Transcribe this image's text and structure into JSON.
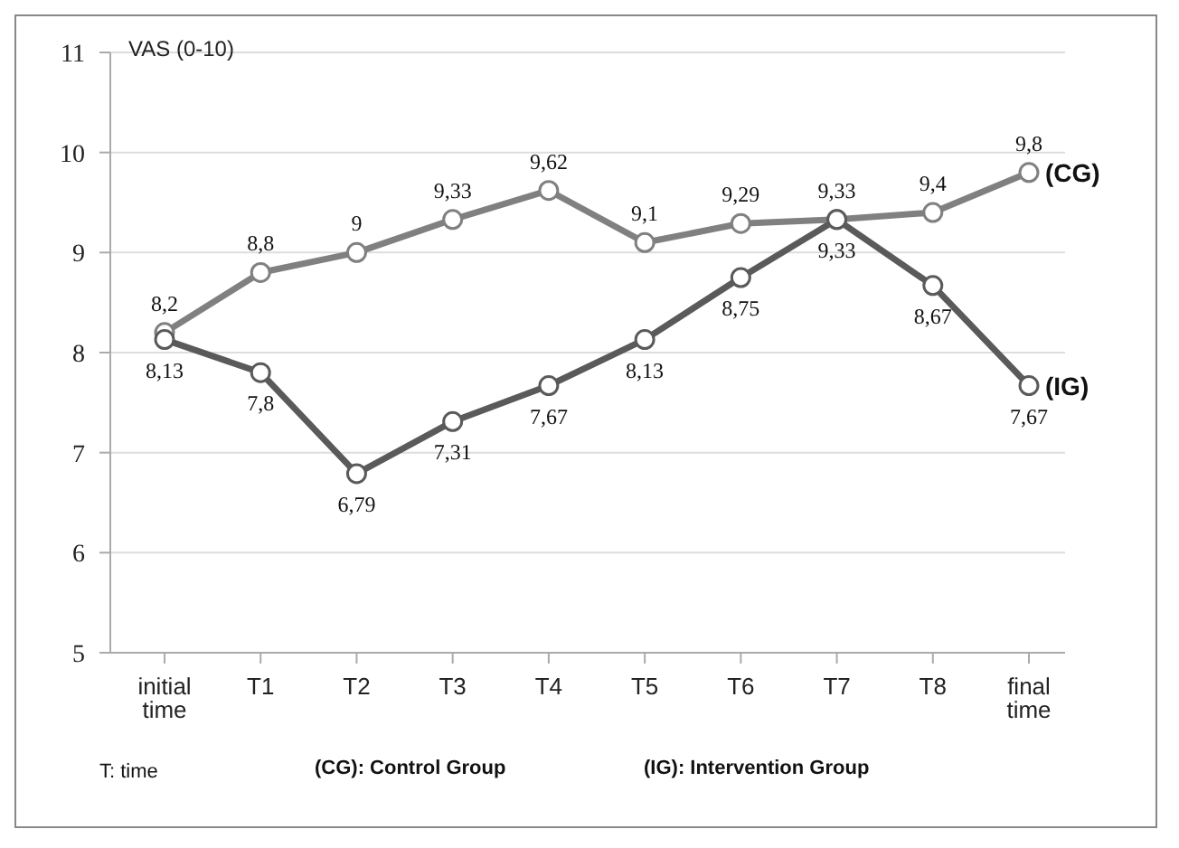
{
  "chart_data": {
    "type": "line",
    "ylabel": "VAS (0-10)",
    "categories": [
      "initial time",
      "T1",
      "T2",
      "T3",
      "T4",
      "T5",
      "T6",
      "T7",
      "T8",
      "final time"
    ],
    "series": [
      {
        "name": "(CG)",
        "color": "#808080",
        "values": [
          8.2,
          8.8,
          9,
          9.33,
          9.62,
          9.1,
          9.29,
          9.33,
          9.4,
          9.8
        ],
        "value_labels": [
          "8,2",
          "8,8",
          "9",
          "9,33",
          "9,62",
          "9,1",
          "9,29",
          "9,33",
          "9,4",
          "9,8"
        ]
      },
      {
        "name": "(IG)",
        "color": "#5a5a5a",
        "values": [
          8.13,
          7.8,
          6.79,
          7.31,
          7.67,
          8.13,
          8.75,
          9.33,
          8.67,
          7.67
        ],
        "value_labels": [
          "8,13",
          "7,8",
          "6,79",
          "7,31",
          "7,67",
          "8,13",
          "8,75",
          "9,33",
          "8,67",
          "7,67"
        ]
      }
    ],
    "ylim": [
      5,
      11
    ],
    "yticks": [
      5,
      6,
      7,
      8,
      9,
      10,
      11
    ],
    "grid": "y",
    "marker": "circle",
    "line_style": "solid",
    "annotations": [
      "T: time",
      "(CG): Control Group",
      "(IG): Intervention Group"
    ]
  }
}
